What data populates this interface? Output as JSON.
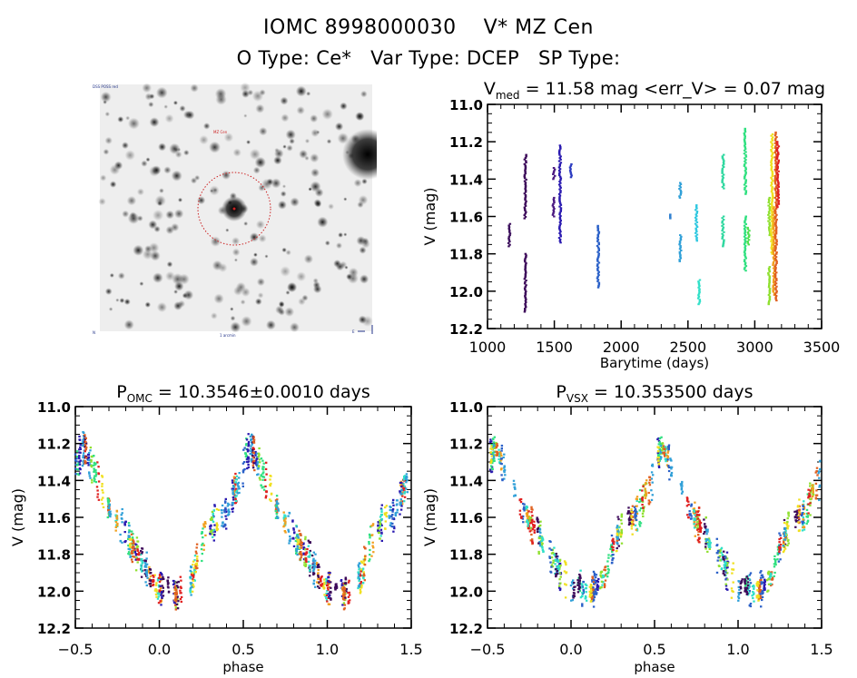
{
  "header": {
    "line1": "IOMC 8998000030    V* MZ Cen",
    "line2": "O Type: Ce*   Var Type: DCEP   SP Type:"
  },
  "finder_image": {
    "label_top_left": "DSS POSS red",
    "target_label": "MZ Cen",
    "label_bottom_center": "1 arcmin",
    "label_bottom_left": "N",
    "compass": "E",
    "circle_color": "#cc2222"
  },
  "chart_data": [
    {
      "id": "lightcurve",
      "type": "scatter",
      "title_main": "V",
      "title_sub": "med",
      "title_rest": " = 11.58 mag <err_V> = 0.07 mag",
      "xlabel": "Barytime (days)",
      "ylabel": "V (mag)",
      "xlim": [
        1000,
        3500
      ],
      "ylim": [
        12.2,
        11.0
      ],
      "xticks": [
        1000,
        1500,
        2000,
        2500,
        3000,
        3500
      ],
      "xtick_labels": [
        "1000",
        "1500",
        "2000",
        "2500",
        "3000",
        "3500"
      ],
      "yticks": [
        11.0,
        11.2,
        11.4,
        11.6,
        11.8,
        12.0,
        12.2
      ],
      "ytick_labels": [
        "11.0",
        "11.2",
        "11.4",
        "11.6",
        "11.8",
        "12.0",
        "12.2"
      ],
      "series": [
        {
          "name": "seg1",
          "color": "#3b0f5c",
          "x": 1165,
          "v_min": 11.64,
          "v_max": 11.76
        },
        {
          "name": "seg2a",
          "color": "#3d0a5a",
          "x": 1285,
          "v_min": 11.27,
          "v_max": 11.61
        },
        {
          "name": "seg2b",
          "color": "#3d0a5a",
          "x": 1285,
          "v_min": 11.8,
          "v_max": 12.11
        },
        {
          "name": "seg3a",
          "color": "#4a1880",
          "x": 1500,
          "v_min": 11.34,
          "v_max": 11.4
        },
        {
          "name": "seg3b",
          "color": "#4a1880",
          "x": 1495,
          "v_min": 11.5,
          "v_max": 11.6
        },
        {
          "name": "seg4",
          "color": "#2a1ab0",
          "x": 1545,
          "v_min": 11.22,
          "v_max": 11.74
        },
        {
          "name": "seg5",
          "color": "#2a3ac0",
          "x": 1625,
          "v_min": 11.32,
          "v_max": 11.39
        },
        {
          "name": "seg6",
          "color": "#2a60c8",
          "x": 1830,
          "v_min": 11.65,
          "v_max": 11.98
        },
        {
          "name": "seg7",
          "color": "#3080d0",
          "x": 2375,
          "v_min": 11.59,
          "v_max": 11.61
        },
        {
          "name": "seg8a",
          "color": "#30a0d8",
          "x": 2445,
          "v_min": 11.42,
          "v_max": 11.5
        },
        {
          "name": "seg8b",
          "color": "#30a0d8",
          "x": 2445,
          "v_min": 11.7,
          "v_max": 11.84
        },
        {
          "name": "seg9",
          "color": "#30c8e0",
          "x": 2565,
          "v_min": 11.54,
          "v_max": 11.73
        },
        {
          "name": "seg10",
          "color": "#30e0c8",
          "x": 2585,
          "v_min": 11.94,
          "v_max": 12.07
        },
        {
          "name": "seg11a",
          "color": "#30d8a0",
          "x": 2765,
          "v_min": 11.27,
          "v_max": 11.45
        },
        {
          "name": "seg11b",
          "color": "#30d8a0",
          "x": 2765,
          "v_min": 11.6,
          "v_max": 11.76
        },
        {
          "name": "seg12a",
          "color": "#30e080",
          "x": 2930,
          "v_min": 11.13,
          "v_max": 11.48
        },
        {
          "name": "seg12b",
          "color": "#30e080",
          "x": 2930,
          "v_min": 11.6,
          "v_max": 11.89
        },
        {
          "name": "seg13",
          "color": "#50e050",
          "x": 2955,
          "v_min": 11.66,
          "v_max": 11.75
        },
        {
          "name": "seg14a",
          "color": "#90e030",
          "x": 3110,
          "v_min": 11.5,
          "v_max": 11.7
        },
        {
          "name": "seg14b",
          "color": "#90e030",
          "x": 3110,
          "v_min": 11.87,
          "v_max": 12.07
        },
        {
          "name": "seg15",
          "color": "#f0e020",
          "x": 3130,
          "v_min": 11.16,
          "v_max": 11.8
        },
        {
          "name": "seg16",
          "color": "#f0a020",
          "x": 3145,
          "v_min": 11.55,
          "v_max": 12.02
        },
        {
          "name": "seg17",
          "color": "#e06020",
          "x": 3160,
          "v_min": 11.15,
          "v_max": 12.05
        },
        {
          "name": "seg18",
          "color": "#e02020",
          "x": 3175,
          "v_min": 11.2,
          "v_max": 11.55
        }
      ]
    },
    {
      "id": "phase_omc",
      "type": "scatter",
      "title_main": "P",
      "title_sub": "OMC",
      "title_rest": " = 10.3546±0.0010 days",
      "xlabel": "phase",
      "ylabel": "V (mag)",
      "xlim": [
        -0.5,
        1.5
      ],
      "ylim": [
        12.2,
        11.0
      ],
      "xticks": [
        -0.5,
        0.0,
        0.5,
        1.0,
        1.5
      ],
      "xtick_labels": [
        "−0.5",
        "0.0",
        "0.5",
        "1.0",
        "1.5"
      ],
      "yticks": [
        11.0,
        11.2,
        11.4,
        11.6,
        11.8,
        12.0,
        12.2
      ],
      "ytick_labels": [
        "11.0",
        "11.2",
        "11.4",
        "11.6",
        "11.8",
        "12.0",
        "12.2"
      ],
      "curve": {
        "description": "Cepheid light curve folded twice (phase -0.5 to 1.5)",
        "phase": [
          -0.5,
          -0.45,
          -0.4,
          -0.35,
          -0.3,
          -0.25,
          -0.2,
          -0.15,
          -0.1,
          -0.05,
          0.0,
          0.05,
          0.1,
          0.15,
          0.2,
          0.25,
          0.3,
          0.35,
          0.4,
          0.45,
          0.5
        ],
        "v": [
          11.3,
          11.22,
          11.33,
          11.42,
          11.55,
          11.62,
          11.68,
          11.78,
          11.83,
          11.92,
          12.0,
          11.96,
          12.02,
          11.97,
          11.93,
          11.75,
          11.66,
          11.6,
          11.58,
          11.45,
          11.38
        ]
      },
      "colors": [
        "#3d0a5a",
        "#2a1ab0",
        "#2a60c8",
        "#30a0d8",
        "#30e0c8",
        "#30e080",
        "#90e030",
        "#f0e020",
        "#f0a020",
        "#e06020",
        "#e02020"
      ]
    },
    {
      "id": "phase_vsx",
      "type": "scatter",
      "title_main": "P",
      "title_sub": "VSX",
      "title_rest": " = 10.353500 days",
      "xlabel": "phase",
      "ylabel": "V (mag)",
      "xlim": [
        -0.5,
        1.5
      ],
      "ylim": [
        12.2,
        11.0
      ],
      "xticks": [
        -0.5,
        0.0,
        0.5,
        1.0,
        1.5
      ],
      "xtick_labels": [
        "−0.5",
        "0.0",
        "0.5",
        "1.0",
        "1.5"
      ],
      "yticks": [
        11.0,
        11.2,
        11.4,
        11.6,
        11.8,
        12.0,
        12.2
      ],
      "ytick_labels": [
        "11.0",
        "11.2",
        "11.4",
        "11.6",
        "11.8",
        "12.0",
        "12.2"
      ],
      "curve": {
        "description": "Cepheid light curve folded twice (phase -0.5 to 1.5)",
        "phase": [
          -0.5,
          -0.45,
          -0.4,
          -0.35,
          -0.3,
          -0.25,
          -0.2,
          -0.15,
          -0.1,
          -0.05,
          0.0,
          0.05,
          0.1,
          0.15,
          0.2,
          0.25,
          0.3,
          0.35,
          0.4,
          0.45,
          0.5
        ],
        "v": [
          11.3,
          11.22,
          11.33,
          11.42,
          11.55,
          11.62,
          11.68,
          11.78,
          11.83,
          11.92,
          12.0,
          11.96,
          12.02,
          11.97,
          11.93,
          11.75,
          11.66,
          11.6,
          11.58,
          11.45,
          11.38
        ]
      },
      "colors": [
        "#3d0a5a",
        "#2a1ab0",
        "#2a60c8",
        "#30a0d8",
        "#30e0c8",
        "#30e080",
        "#90e030",
        "#f0e020",
        "#f0a020",
        "#e06020",
        "#e02020"
      ]
    }
  ]
}
